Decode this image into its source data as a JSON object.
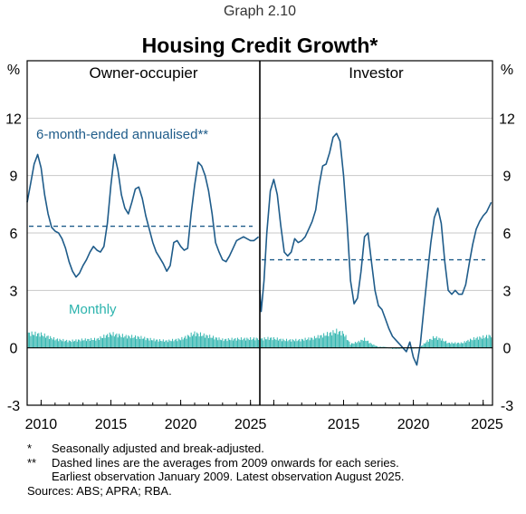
{
  "graph_number": "Graph 2.10",
  "title": "Housing Credit Growth*",
  "footnotes": [
    {
      "mark": "*",
      "text": "Seasonally adjusted and break-adjusted."
    },
    {
      "mark": "**",
      "text": "Dashed lines are the averages from 2009 onwards for each series.\nEarliest observation January 2009. Latest observation August 2025."
    }
  ],
  "source": "Sources: ABS; APRA; RBA.",
  "colors": {
    "line": "#1f5c8a",
    "bars": "#2bb3ad",
    "grid": "#c8c8c8",
    "axis": "#000000"
  },
  "chart_data": {
    "type": "line",
    "y_unit_label_left": "%",
    "y_unit_label_right": "%",
    "ylim": [
      -3,
      15
    ],
    "yticks": [
      -3,
      0,
      3,
      6,
      9,
      12
    ],
    "ytick_labels": [
      "-3",
      "0",
      "3",
      "6",
      "9",
      "12"
    ],
    "grid": true,
    "xlim": [
      2009.0,
      2025.67
    ],
    "xticks": [
      2010,
      2015,
      2020,
      2025
    ],
    "xtick_labels": [
      "2010",
      "2015",
      "2020",
      "2025"
    ],
    "series_annotations": {
      "line": "6-month-ended annualised**",
      "bars": "Monthly"
    },
    "panels": [
      {
        "title": "Owner-occupier",
        "average": 6.35,
        "line": [
          [
            2009.0,
            7.6
          ],
          [
            2009.25,
            8.6
          ],
          [
            2009.5,
            9.6
          ],
          [
            2009.75,
            10.1
          ],
          [
            2010.0,
            9.4
          ],
          [
            2010.25,
            8.0
          ],
          [
            2010.5,
            7.0
          ],
          [
            2010.75,
            6.3
          ],
          [
            2011.0,
            6.1
          ],
          [
            2011.25,
            6.0
          ],
          [
            2011.5,
            5.7
          ],
          [
            2011.75,
            5.2
          ],
          [
            2012.0,
            4.5
          ],
          [
            2012.25,
            4.0
          ],
          [
            2012.5,
            3.7
          ],
          [
            2012.75,
            3.9
          ],
          [
            2013.0,
            4.3
          ],
          [
            2013.25,
            4.6
          ],
          [
            2013.5,
            5.0
          ],
          [
            2013.75,
            5.3
          ],
          [
            2014.0,
            5.1
          ],
          [
            2014.25,
            5.0
          ],
          [
            2014.5,
            5.3
          ],
          [
            2014.75,
            6.5
          ],
          [
            2015.0,
            8.5
          ],
          [
            2015.25,
            10.1
          ],
          [
            2015.5,
            9.3
          ],
          [
            2015.75,
            8.0
          ],
          [
            2016.0,
            7.3
          ],
          [
            2016.25,
            7.0
          ],
          [
            2016.5,
            7.6
          ],
          [
            2016.75,
            8.3
          ],
          [
            2017.0,
            8.4
          ],
          [
            2017.25,
            7.8
          ],
          [
            2017.5,
            6.9
          ],
          [
            2017.75,
            6.2
          ],
          [
            2018.0,
            5.5
          ],
          [
            2018.25,
            5.0
          ],
          [
            2018.5,
            4.7
          ],
          [
            2018.75,
            4.4
          ],
          [
            2019.0,
            4.0
          ],
          [
            2019.25,
            4.3
          ],
          [
            2019.5,
            5.5
          ],
          [
            2019.75,
            5.6
          ],
          [
            2020.0,
            5.3
          ],
          [
            2020.25,
            5.1
          ],
          [
            2020.5,
            5.2
          ],
          [
            2020.75,
            7.0
          ],
          [
            2021.0,
            8.5
          ],
          [
            2021.25,
            9.7
          ],
          [
            2021.5,
            9.5
          ],
          [
            2021.75,
            9.0
          ],
          [
            2022.0,
            8.2
          ],
          [
            2022.25,
            7.0
          ],
          [
            2022.5,
            5.5
          ],
          [
            2022.75,
            5.0
          ],
          [
            2023.0,
            4.6
          ],
          [
            2023.25,
            4.5
          ],
          [
            2023.5,
            4.8
          ],
          [
            2023.75,
            5.2
          ],
          [
            2024.0,
            5.6
          ],
          [
            2024.25,
            5.7
          ],
          [
            2024.5,
            5.8
          ],
          [
            2024.75,
            5.7
          ],
          [
            2025.0,
            5.6
          ],
          [
            2025.25,
            5.6
          ],
          [
            2025.58,
            5.8
          ]
        ],
        "monthly_bars_approx": [
          [
            2009.0,
            0.75
          ],
          [
            2010.0,
            0.7
          ],
          [
            2011.0,
            0.45
          ],
          [
            2012.0,
            0.35
          ],
          [
            2013.0,
            0.42
          ],
          [
            2014.0,
            0.45
          ],
          [
            2015.0,
            0.72
          ],
          [
            2016.0,
            0.6
          ],
          [
            2017.0,
            0.55
          ],
          [
            2018.0,
            0.42
          ],
          [
            2019.0,
            0.36
          ],
          [
            2020.0,
            0.45
          ],
          [
            2021.0,
            0.75
          ],
          [
            2022.0,
            0.6
          ],
          [
            2023.0,
            0.42
          ],
          [
            2024.0,
            0.46
          ],
          [
            2025.0,
            0.47
          ],
          [
            2025.67,
            0.48
          ]
        ]
      },
      {
        "title": "Investor",
        "average": 4.6,
        "line": [
          [
            2009.0,
            3.0
          ],
          [
            2009.1,
            1.9
          ],
          [
            2009.3,
            3.5
          ],
          [
            2009.5,
            6.0
          ],
          [
            2009.75,
            8.2
          ],
          [
            2010.0,
            8.8
          ],
          [
            2010.25,
            8.0
          ],
          [
            2010.5,
            6.4
          ],
          [
            2010.75,
            5.0
          ],
          [
            2011.0,
            4.8
          ],
          [
            2011.25,
            5.0
          ],
          [
            2011.5,
            5.7
          ],
          [
            2011.75,
            5.5
          ],
          [
            2012.0,
            5.6
          ],
          [
            2012.25,
            5.8
          ],
          [
            2012.5,
            6.2
          ],
          [
            2012.75,
            6.6
          ],
          [
            2013.0,
            7.2
          ],
          [
            2013.25,
            8.5
          ],
          [
            2013.5,
            9.5
          ],
          [
            2013.75,
            9.6
          ],
          [
            2014.0,
            10.2
          ],
          [
            2014.25,
            11.0
          ],
          [
            2014.5,
            11.2
          ],
          [
            2014.75,
            10.8
          ],
          [
            2015.0,
            9.0
          ],
          [
            2015.25,
            6.5
          ],
          [
            2015.5,
            3.5
          ],
          [
            2015.75,
            2.3
          ],
          [
            2016.0,
            2.6
          ],
          [
            2016.25,
            4.0
          ],
          [
            2016.5,
            5.8
          ],
          [
            2016.75,
            6.0
          ],
          [
            2017.0,
            4.5
          ],
          [
            2017.25,
            3.0
          ],
          [
            2017.5,
            2.2
          ],
          [
            2017.75,
            2.0
          ],
          [
            2018.0,
            1.5
          ],
          [
            2018.25,
            1.0
          ],
          [
            2018.5,
            0.6
          ],
          [
            2018.75,
            0.4
          ],
          [
            2019.0,
            0.2
          ],
          [
            2019.25,
            0.0
          ],
          [
            2019.5,
            -0.2
          ],
          [
            2019.75,
            0.3
          ],
          [
            2020.0,
            -0.5
          ],
          [
            2020.25,
            -0.9
          ],
          [
            2020.5,
            0.2
          ],
          [
            2020.75,
            2.0
          ],
          [
            2021.0,
            3.8
          ],
          [
            2021.25,
            5.5
          ],
          [
            2021.5,
            6.8
          ],
          [
            2021.75,
            7.3
          ],
          [
            2022.0,
            6.5
          ],
          [
            2022.25,
            4.5
          ],
          [
            2022.5,
            3.0
          ],
          [
            2022.75,
            2.8
          ],
          [
            2023.0,
            3.0
          ],
          [
            2023.25,
            2.8
          ],
          [
            2023.5,
            2.8
          ],
          [
            2023.75,
            3.3
          ],
          [
            2024.0,
            4.4
          ],
          [
            2024.25,
            5.4
          ],
          [
            2024.5,
            6.2
          ],
          [
            2024.75,
            6.6
          ],
          [
            2025.0,
            6.9
          ],
          [
            2025.25,
            7.1
          ],
          [
            2025.58,
            7.6
          ]
        ],
        "monthly_bars_approx": [
          [
            2009.0,
            0.45
          ],
          [
            2009.8,
            0.5
          ],
          [
            2010.8,
            0.4
          ],
          [
            2011.8,
            0.4
          ],
          [
            2012.8,
            0.5
          ],
          [
            2013.8,
            0.7
          ],
          [
            2014.5,
            0.85
          ],
          [
            2015.0,
            0.75
          ],
          [
            2015.5,
            0.2
          ],
          [
            2016.0,
            0.3
          ],
          [
            2016.5,
            0.45
          ],
          [
            2017.0,
            0.2
          ],
          [
            2017.5,
            0.05
          ],
          [
            2018.0,
            0.05
          ],
          [
            2018.5,
            -0.05
          ],
          [
            2019.0,
            -0.05
          ],
          [
            2019.5,
            0.0
          ],
          [
            2020.0,
            -0.05
          ],
          [
            2020.5,
            0.05
          ],
          [
            2021.0,
            0.35
          ],
          [
            2021.5,
            0.55
          ],
          [
            2022.0,
            0.45
          ],
          [
            2022.5,
            0.25
          ],
          [
            2023.0,
            0.25
          ],
          [
            2023.5,
            0.25
          ],
          [
            2024.0,
            0.4
          ],
          [
            2024.5,
            0.5
          ],
          [
            2025.0,
            0.55
          ],
          [
            2025.67,
            0.65
          ]
        ]
      }
    ]
  }
}
